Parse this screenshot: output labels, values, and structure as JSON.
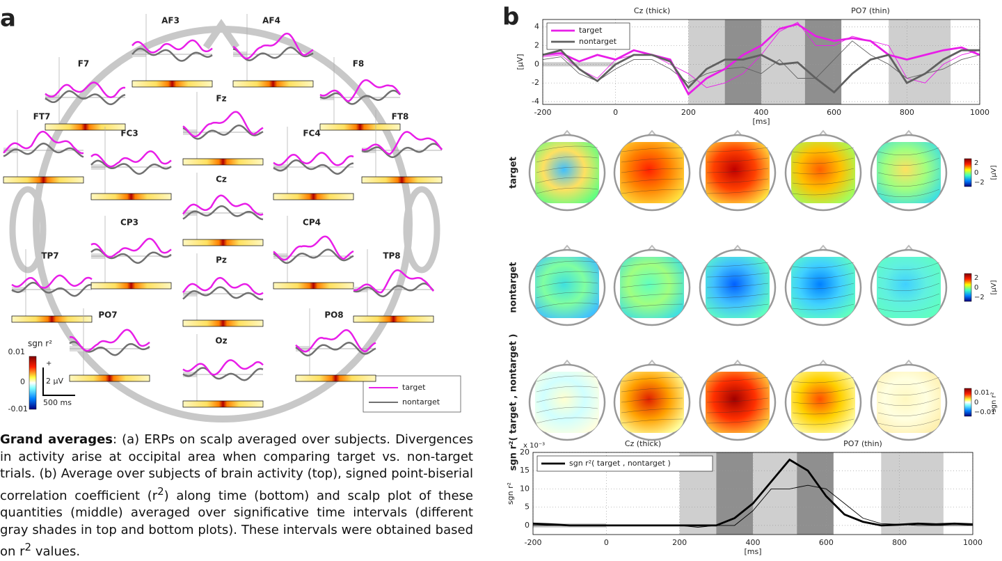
{
  "panel_a": {
    "label": "a",
    "electrodes": [
      "AF3",
      "AF4",
      "F7",
      "F8",
      "FT7",
      "FC3",
      "Fz",
      "FC4",
      "FT8",
      "Cz",
      "CP3",
      "CP4",
      "TP7",
      "TP8",
      "Pz",
      "PO7",
      "PO8",
      "Oz"
    ],
    "colorbar": {
      "title": "sgn r²",
      "ticks": [
        "0.01",
        "0",
        "-0.01"
      ]
    },
    "scale": {
      "plus": "+",
      "voltage": "2 µV",
      "time": "500 ms"
    },
    "legend": [
      "target",
      "nontarget"
    ]
  },
  "panel_b": {
    "label": "b",
    "row_labels": [
      "target",
      "nontarget",
      "sgn r²( target , nontarget )"
    ],
    "colorbars": [
      {
        "ticks": [
          "2",
          "0",
          "−2"
        ],
        "unit": "[µV]"
      },
      {
        "ticks": [
          "2",
          "0",
          "−2"
        ],
        "unit": "[µV]"
      },
      {
        "ticks": [
          "0.01",
          "0",
          "−0.01"
        ],
        "unit": "sgn r²"
      }
    ]
  },
  "chart_data": [
    {
      "type": "line",
      "annotations": [
        "Cz (thick)",
        "PO7 (thin)"
      ],
      "xlabel": "[ms]",
      "ylabel": "[µV]",
      "grid": true,
      "legend": "upper left",
      "x": [
        -200,
        -150,
        -100,
        -50,
        0,
        50,
        100,
        150,
        200,
        250,
        300,
        350,
        400,
        450,
        500,
        550,
        600,
        650,
        700,
        750,
        800,
        850,
        900,
        950,
        1000
      ],
      "xlim": [
        -200,
        1000
      ],
      "ylim": [
        -4.3,
        4.8
      ],
      "xticks": [
        -200,
        0,
        200,
        400,
        600,
        800,
        1000
      ],
      "yticks": [
        -4,
        -2,
        0,
        2,
        4
      ],
      "intervals": [
        {
          "start": 200,
          "end": 300,
          "shade": "#cfcfcf"
        },
        {
          "start": 300,
          "end": 400,
          "shade": "#8f8f8f"
        },
        {
          "start": 400,
          "end": 520,
          "shade": "#cfcfcf"
        },
        {
          "start": 520,
          "end": 620,
          "shade": "#8f8f8f"
        },
        {
          "start": 750,
          "end": 920,
          "shade": "#cfcfcf"
        }
      ],
      "series": [
        {
          "name": "target",
          "color": "#e81ee8",
          "values": [
            1,
            1.2,
            0.3,
            1,
            0.5,
            1.5,
            1,
            0.5,
            -3.2,
            -1.5,
            -0.5,
            1,
            2,
            3.8,
            4.3,
            3,
            2.5,
            2.8,
            2.5,
            1,
            0.5,
            1,
            1.5,
            1.8,
            1
          ],
          "thin_values": [
            0.8,
            1,
            -0.5,
            -1.5,
            0.5,
            1,
            1,
            0,
            -1,
            -2.5,
            -2,
            -1,
            1,
            3.5,
            4.5,
            2,
            2,
            3,
            2.5,
            2,
            -1.5,
            -2,
            0,
            1,
            1.5
          ]
        },
        {
          "name": "nontarget",
          "color": "#606060",
          "values": [
            1,
            1.5,
            -0.5,
            -1.8,
            0,
            1,
            1,
            0.3,
            -2.5,
            -0.5,
            0.5,
            0.5,
            1,
            0,
            0.2,
            -1.5,
            -3,
            -1,
            0.5,
            1,
            -2,
            -1,
            0.5,
            1.5,
            1.5
          ],
          "thin_values": [
            0.5,
            0.8,
            -1,
            -1.8,
            -0.5,
            0.5,
            0.5,
            -0.5,
            -2,
            -1,
            -0.5,
            -0.3,
            -1,
            0.5,
            -1.5,
            -1.5,
            0.5,
            2.5,
            1,
            0,
            -1.5,
            -1,
            -0.5,
            0.5,
            1
          ]
        }
      ]
    },
    {
      "type": "line",
      "annotations": [
        "Cz (thick)",
        "PO7 (thin)"
      ],
      "xlabel": "[ms]",
      "ylabel": "sgn r²",
      "multiplier": "x 10⁻³",
      "grid": true,
      "legend": "upper left",
      "x": [
        -200,
        -150,
        -100,
        -50,
        0,
        50,
        100,
        150,
        200,
        250,
        300,
        350,
        400,
        450,
        500,
        550,
        600,
        650,
        700,
        750,
        800,
        850,
        900,
        950,
        1000
      ],
      "xlim": [
        -200,
        1000
      ],
      "ylim": [
        -2.5,
        20
      ],
      "xticks": [
        -200,
        0,
        200,
        400,
        600,
        800,
        1000
      ],
      "yticks": [
        0,
        5,
        10,
        15,
        20
      ],
      "intervals": [
        {
          "start": 200,
          "end": 300,
          "shade": "#cfcfcf"
        },
        {
          "start": 300,
          "end": 400,
          "shade": "#8f8f8f"
        },
        {
          "start": 400,
          "end": 520,
          "shade": "#cfcfcf"
        },
        {
          "start": 520,
          "end": 620,
          "shade": "#8f8f8f"
        },
        {
          "start": 750,
          "end": 920,
          "shade": "#cfcfcf"
        }
      ],
      "series": [
        {
          "name": "sgn r²( target , nontarget )",
          "color": "#000000",
          "values": [
            0.5,
            0.3,
            0,
            0,
            0,
            0,
            0,
            0,
            0,
            0,
            0,
            2,
            6,
            12,
            18,
            15,
            8,
            3,
            1,
            0,
            0.2,
            0.5,
            0.3,
            0.5,
            0.3
          ],
          "thin_values": [
            0,
            0,
            0,
            0,
            0,
            0,
            0,
            0,
            0,
            -0.5,
            0,
            0,
            4,
            10,
            10,
            11,
            10,
            6,
            2,
            0.5,
            0.3,
            0,
            0,
            0,
            0
          ]
        }
      ]
    }
  ],
  "caption": {
    "parts": [
      "Grand averages",
      ": (a) ERPs on scalp averaged over subjects. Divergences in activity arise at occipital area when comparing target vs. non-target trials. (b) Average over subjects of brain activity (top), signed point-biserial correlation coefficient (r",
      "2",
      ") along time (bottom) and scalp plot of these quantities (middle) averaged over significative time intervals (different gray shades in top and bottom plots). These intervals were obtained based on r",
      "2",
      " values."
    ]
  }
}
